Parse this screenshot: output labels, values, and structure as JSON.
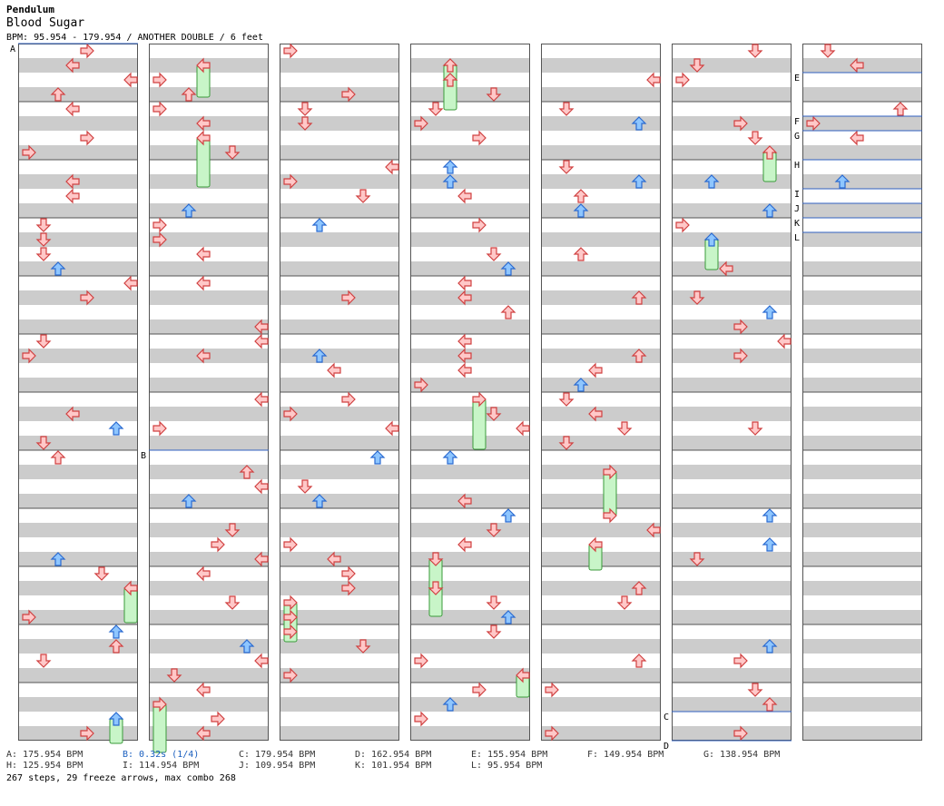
{
  "header": {
    "artist": "Pendulum",
    "title": "Blood Sugar",
    "subline": "BPM: 95.954 - 179.954 / ANOTHER DOUBLE / 6 feet"
  },
  "chart": {
    "columns": 7,
    "measures_per_column": 12,
    "colors": {
      "stripe_gray": "#cccccc",
      "border": "#555555",
      "bpm_line": "#3060c0",
      "arrow_red_fill": "#ffc8c8",
      "arrow_red_stroke": "#d04040",
      "arrow_blue_fill": "#8ec6ff",
      "arrow_blue_stroke": "#2a6ad0",
      "freeze_fill": "#c8f5c8",
      "freeze_stroke": "#3a9a3a"
    },
    "markers": [
      {
        "label": "A",
        "col": 0,
        "measure": 0.0
      },
      {
        "label": "B",
        "col": 1,
        "measure": 7.0
      },
      {
        "label": "C",
        "col": 5,
        "measure": 11.5
      },
      {
        "label": "D",
        "col": 5,
        "measure": 12.0
      },
      {
        "label": "E",
        "col": 6,
        "measure": 0.5
      },
      {
        "label": "F",
        "col": 6,
        "measure": 1.25
      },
      {
        "label": "G",
        "col": 6,
        "measure": 1.5
      },
      {
        "label": "H",
        "col": 6,
        "measure": 2.0
      },
      {
        "label": "I",
        "col": 6,
        "measure": 2.5
      },
      {
        "label": "J",
        "col": 6,
        "measure": 2.75
      },
      {
        "label": "K",
        "col": 6,
        "measure": 3.0
      },
      {
        "label": "L",
        "col": 6,
        "measure": 3.25
      }
    ]
  },
  "legend": [
    {
      "text": "A: 175.954 BPM",
      "highlight": false
    },
    {
      "text": "B: 0.32s (1/4)",
      "highlight": true
    },
    {
      "text": "C: 179.954 BPM",
      "highlight": false
    },
    {
      "text": "D: 162.954 BPM",
      "highlight": false
    },
    {
      "text": "E: 155.954 BPM",
      "highlight": false
    },
    {
      "text": "F: 149.954 BPM",
      "highlight": false
    },
    {
      "text": "G: 138.954 BPM",
      "highlight": false
    },
    {
      "text": "H: 125.954 BPM",
      "highlight": false
    },
    {
      "text": "I: 114.954 BPM",
      "highlight": false
    },
    {
      "text": "J: 109.954 BPM",
      "highlight": false
    },
    {
      "text": "K: 101.954 BPM",
      "highlight": false
    },
    {
      "text": "L: 95.954 BPM",
      "highlight": false
    }
  ],
  "stats": "267 steps, 29 freeze arrows, max combo 268"
}
